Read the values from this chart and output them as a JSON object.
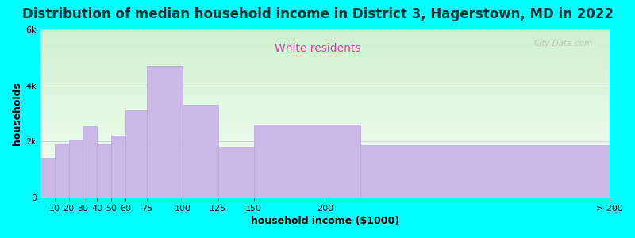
{
  "title": "Distribution of median household income in District 3, Hagerstown, MD in 2022",
  "subtitle": "White residents",
  "xlabel": "household income ($1000)",
  "ylabel": "households",
  "background_color": "#00FFFF",
  "bar_color": "#c9b8e8",
  "bar_edge_color": "#b8a8d8",
  "title_fontsize": 12,
  "title_color": "#003333",
  "subtitle_fontsize": 10,
  "subtitle_color": "#cc44aa",
  "xlabel_fontsize": 9,
  "ylabel_fontsize": 9,
  "tick_fontsize": 8,
  "left_edges": [
    0,
    10,
    20,
    30,
    40,
    50,
    60,
    75,
    100,
    125,
    150,
    225
  ],
  "right_edges": [
    10,
    20,
    30,
    40,
    50,
    60,
    75,
    100,
    125,
    150,
    225,
    400
  ],
  "values": [
    1400,
    1900,
    2050,
    2550,
    1900,
    2200,
    3100,
    4700,
    3300,
    1800,
    2600,
    1850
  ],
  "xtick_positions": [
    10,
    20,
    30,
    40,
    50,
    60,
    75,
    100,
    125,
    150,
    200,
    400
  ],
  "xtick_labels": [
    "10",
    "20",
    "30",
    "40",
    "50",
    "60",
    "75",
    "100",
    "125",
    "150",
    "200",
    "> 200"
  ],
  "ylim": [
    0,
    6000
  ],
  "yticks": [
    0,
    2000,
    4000,
    6000
  ],
  "ytick_labels": [
    "0",
    "2k",
    "4k",
    "6k"
  ],
  "xlim": [
    0,
    400
  ],
  "watermark": "City-Data.com",
  "grad_top_color": "#cff0cf",
  "grad_bot_color": "#f5fff5"
}
